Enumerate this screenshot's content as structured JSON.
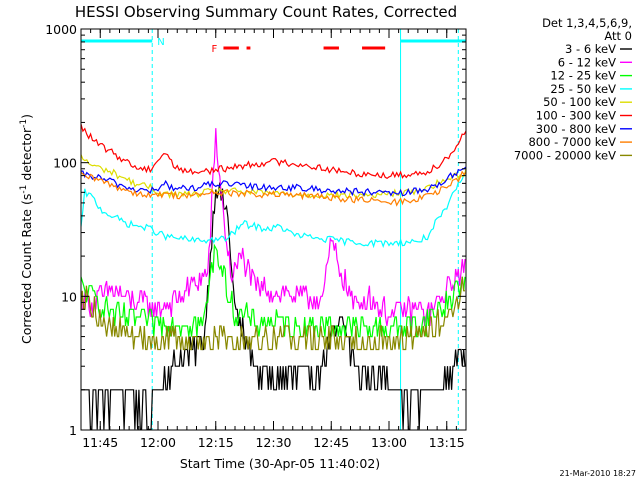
{
  "chart_data": {
    "type": "line",
    "title": "HESSI Observing Summary Count Rates, Corrected",
    "xlabel": "Start Time (30-Apr-05 11:40:02)",
    "ylabel_parts": [
      "Corrected Count Rate (s",
      "-1",
      " detector",
      "-1",
      ")"
    ],
    "y_scale": "log",
    "ylim": [
      1,
      1000
    ],
    "y_ticks": [
      1,
      10,
      100,
      1000
    ],
    "y_tick_labels": [
      "1",
      "10",
      "100",
      "1000"
    ],
    "xlim_minutes": [
      0,
      100
    ],
    "x_tick_labels": [
      "11:45",
      "12:00",
      "12:15",
      "12:30",
      "12:45",
      "13:00",
      "13:15"
    ],
    "x_tick_minutes": [
      5,
      20,
      35,
      50,
      65,
      80,
      95
    ],
    "legend_header": [
      "Det 1,3,4,5,6,9,",
      "Att 0"
    ],
    "legend_position": "right",
    "timestamp": "21-Mar-2010 18:27",
    "series": [
      {
        "name": "3 - 6 keV",
        "color": "#000000",
        "x": [
          0,
          4,
          5,
          11,
          18,
          22,
          28,
          32,
          35,
          38,
          40,
          45,
          50,
          55,
          62,
          65,
          68,
          72,
          78,
          84,
          90,
          95,
          98,
          100
        ],
        "y": [
          1.8,
          1.6,
          1.8,
          1.7,
          1.5,
          2.8,
          3.6,
          5,
          70,
          42,
          8,
          3,
          2.4,
          2.5,
          2.8,
          5,
          6,
          2.6,
          2.6,
          1.6,
          1.7,
          2.2,
          3.5,
          3.8
        ]
      },
      {
        "name": "6 - 12 keV",
        "color": "#ff00ff",
        "x": [
          0,
          3,
          8,
          14,
          20,
          26,
          30,
          33,
          35,
          37,
          39,
          42,
          45,
          50,
          56,
          60,
          63,
          65,
          68,
          71,
          75,
          80,
          86,
          90,
          93,
          95,
          97,
          100
        ],
        "y": [
          9.5,
          9,
          11,
          9,
          8,
          10,
          13,
          15,
          160,
          40,
          14,
          20,
          12,
          11,
          10,
          9.5,
          10,
          26,
          14,
          8.5,
          9.5,
          7.5,
          8,
          7.5,
          9,
          11,
          13.5,
          16
        ]
      },
      {
        "name": "12 - 25 keV",
        "color": "#00ff00",
        "x": [
          0,
          5,
          10,
          20,
          28,
          32,
          35,
          37,
          40,
          45,
          55,
          65,
          72,
          80,
          88,
          92,
          95,
          97,
          100
        ],
        "y": [
          12,
          9,
          7,
          6.5,
          6.2,
          6.5,
          25,
          14,
          7.5,
          6.5,
          6,
          6,
          5.8,
          5.8,
          6.2,
          7.5,
          9,
          11,
          13
        ]
      },
      {
        "name": "25 - 50 keV",
        "color": "#00ffff",
        "x": [
          0,
          1,
          3,
          5,
          8,
          12,
          18,
          22,
          26,
          30,
          34,
          38,
          42,
          48,
          52,
          55,
          60,
          65,
          70,
          75,
          80,
          85,
          88,
          90,
          92,
          95,
          98,
          100
        ],
        "y": [
          32,
          60,
          55,
          45,
          40,
          35,
          32,
          28,
          27,
          26,
          26.5,
          27,
          35,
          32,
          33,
          29,
          27.5,
          26.5,
          25.5,
          25,
          25,
          25.5,
          26,
          28,
          35,
          45,
          70,
          80
        ]
      },
      {
        "name": "50 - 100 keV",
        "color": "#dddd00",
        "x": [
          0,
          3,
          8,
          14,
          18,
          20,
          24,
          30,
          35,
          45,
          55,
          65,
          75,
          85,
          90,
          95,
          100
        ],
        "y": [
          110,
          95,
          85,
          70,
          65,
          60,
          58,
          58,
          62,
          60,
          58,
          57,
          57,
          60,
          65,
          75,
          85
        ]
      },
      {
        "name": "100 - 300 keV",
        "color": "#ff0000",
        "x": [
          0,
          4,
          10,
          15,
          18,
          20,
          22,
          24,
          28,
          35,
          42,
          50,
          56,
          62,
          68,
          75,
          80,
          86,
          90,
          93,
          96,
          98,
          100
        ],
        "y": [
          185,
          140,
          110,
          90,
          90,
          105,
          120,
          95,
          85,
          88,
          95,
          102,
          98,
          92,
          85,
          82,
          80,
          82,
          86,
          98,
          115,
          140,
          180
        ]
      },
      {
        "name": "300 - 800 keV",
        "color": "#0000ff",
        "x": [
          0,
          4,
          8,
          12,
          16,
          20,
          22,
          24,
          30,
          35,
          45,
          55,
          65,
          75,
          80,
          85,
          90,
          95,
          100
        ],
        "y": [
          82,
          78,
          72,
          65,
          62,
          62,
          70,
          64,
          65,
          70,
          66,
          65,
          62,
          60,
          58,
          60,
          63,
          75,
          95
        ]
      },
      {
        "name": "800 - 7000 keV",
        "color": "#ff7f00",
        "x": [
          0,
          4,
          8,
          12,
          16,
          20,
          22,
          24,
          30,
          35,
          45,
          55,
          65,
          75,
          80,
          85,
          90,
          95,
          100
        ],
        "y": [
          80,
          75,
          68,
          62,
          58,
          56,
          60,
          57,
          57,
          60,
          58,
          57,
          55,
          52,
          50,
          52,
          56,
          65,
          85
        ]
      },
      {
        "name": "7000 - 20000 keV",
        "color": "#888800",
        "x": [
          0,
          3,
          6,
          10,
          15,
          20,
          25,
          30,
          35,
          40,
          45,
          50,
          55,
          60,
          65,
          70,
          75,
          80,
          85,
          90,
          95,
          98,
          100
        ],
        "y": [
          10.5,
          9,
          6,
          5.5,
          5,
          4.8,
          4.6,
          4.6,
          4.8,
          4.8,
          4.8,
          4.9,
          5,
          5,
          5,
          4.8,
          4.7,
          4.6,
          4.6,
          5.5,
          7,
          10,
          13
        ]
      }
    ],
    "flags": [
      {
        "label": "N",
        "color": "#00ffff",
        "segments": [
          [
            0,
            18.5
          ],
          [
            83,
            100
          ]
        ]
      },
      {
        "label": "F",
        "color": "#ff0000",
        "segments": [
          [
            37,
            41
          ],
          [
            43,
            44
          ],
          [
            63,
            67
          ],
          [
            73,
            79
          ]
        ]
      }
    ],
    "markers": [
      {
        "x": 0,
        "color": "#00ffff",
        "style": "dashed"
      },
      {
        "x": 18.5,
        "color": "#00ffff",
        "style": "dashed"
      },
      {
        "x": 83,
        "color": "#00ffff",
        "style": "solid"
      },
      {
        "x": 98,
        "color": "#00ffff",
        "style": "dashed"
      }
    ]
  }
}
